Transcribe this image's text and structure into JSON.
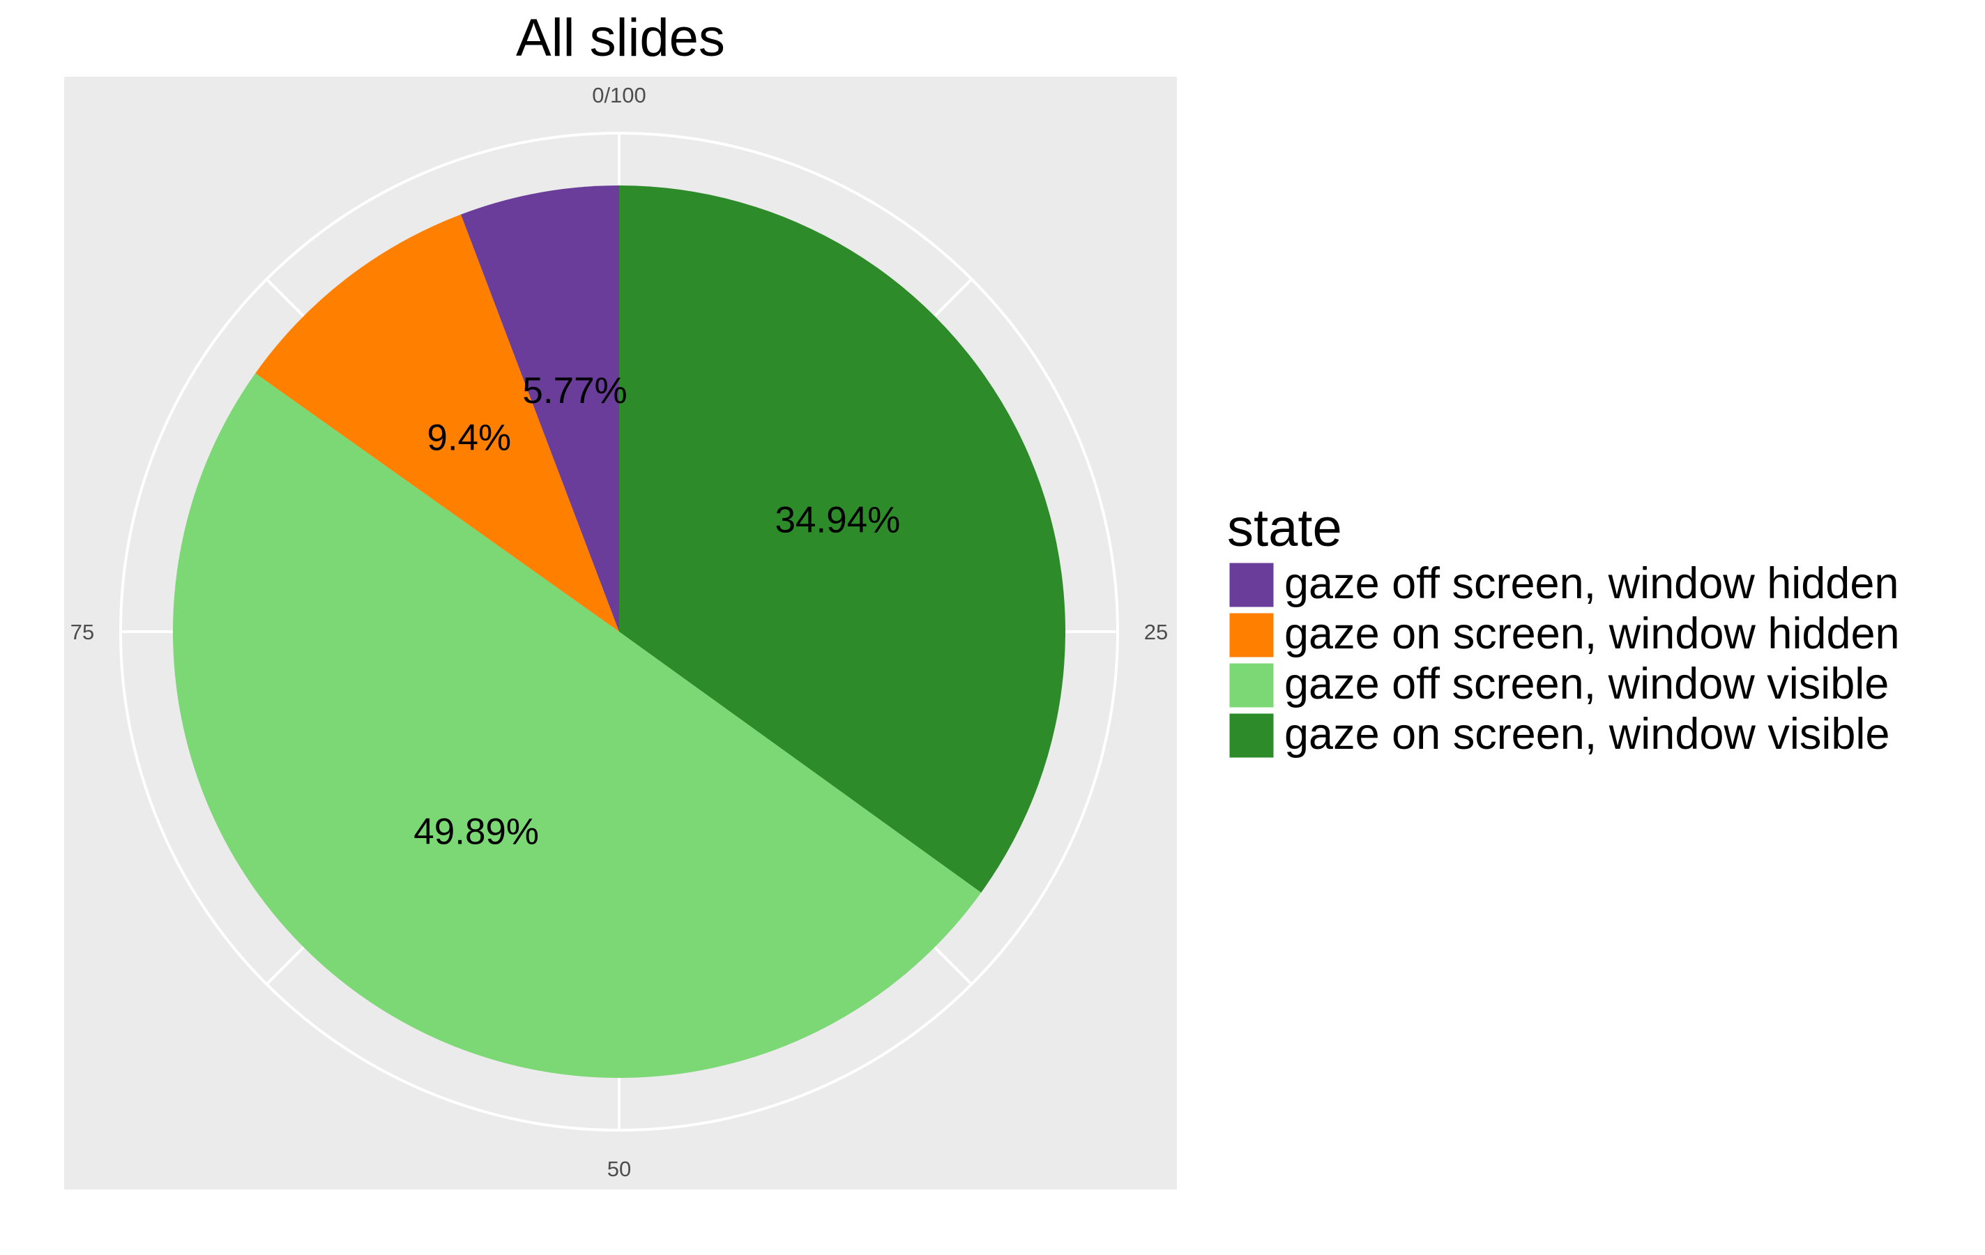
{
  "chart_data": {
    "type": "pie",
    "title": "All slides",
    "angular_axis": {
      "range": [
        0,
        100
      ],
      "tick_labels": [
        "0/100",
        "25",
        "50",
        "75"
      ],
      "ticks": [
        0,
        25,
        50,
        75
      ]
    },
    "grid": true,
    "legend": {
      "title": "state",
      "placement": "right",
      "entries": [
        "gaze off screen, window hidden",
        "gaze on screen, window hidden",
        "gaze off screen, window visible",
        "gaze on screen, window visible"
      ]
    },
    "slices": [
      {
        "name": "gaze on screen, window visible",
        "value": 34.94,
        "label": "34.94%",
        "color": "#2e8b2a"
      },
      {
        "name": "gaze off screen, window visible",
        "value": 49.89,
        "label": "49.89%",
        "color": "#7bd875"
      },
      {
        "name": "gaze on screen, window hidden",
        "value": 9.4,
        "label": "9.4%",
        "color": "#ff7f00"
      },
      {
        "name": "gaze off screen, window hidden",
        "value": 5.77,
        "label": "5.77%",
        "color": "#6a3d9a"
      }
    ],
    "colors": {
      "panel_background": "#ebebeb",
      "grid_line": "#ffffff",
      "tick_text": "#4d4d4d"
    }
  }
}
